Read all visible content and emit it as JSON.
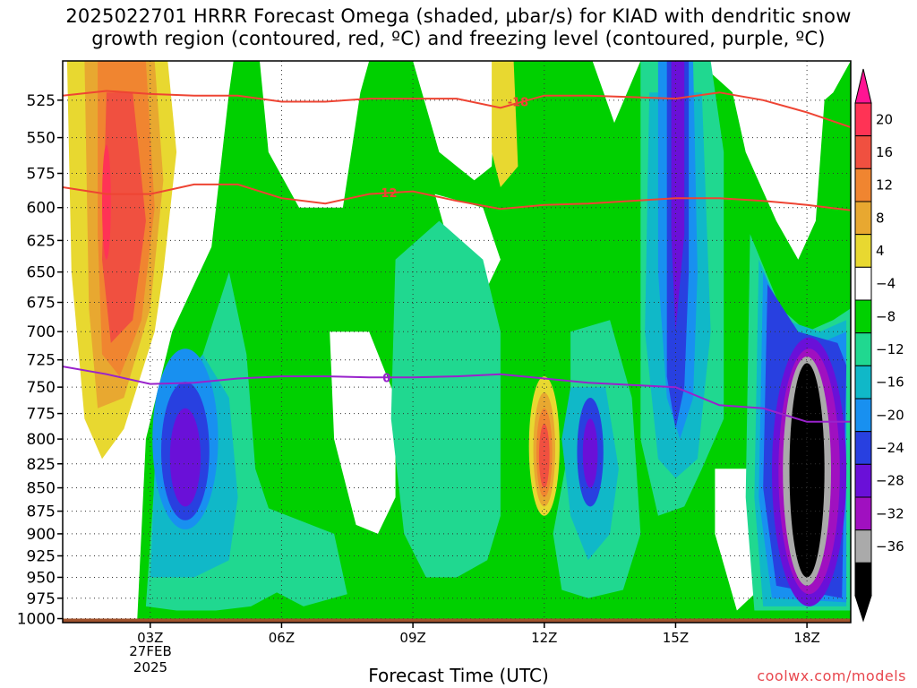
{
  "chart_data": {
    "type": "heatmap",
    "title_line1": "2025022701 HRRR Forecast Omega (shaded, μbar/s) for KIAD with dendritic snow",
    "title_line2": "growth region (contoured, red, ºC) and freezing level (contoured, purple, ºC)",
    "xlabel": "Forecast Time (UTC)",
    "x_ticks": [
      "03Z",
      "06Z",
      "09Z",
      "12Z",
      "15Z",
      "18Z"
    ],
    "x_tick_hours": [
      3,
      6,
      9,
      12,
      15,
      18
    ],
    "x_date_line1": "27FEB",
    "x_date_line2": "2025",
    "xlim_hours": [
      1,
      19
    ],
    "y_ticks": [
      525,
      550,
      575,
      600,
      625,
      650,
      675,
      700,
      725,
      750,
      775,
      800,
      825,
      850,
      875,
      900,
      925,
      950,
      975,
      1000
    ],
    "ylim_hPa": [
      500,
      1005
    ],
    "y_scale": "log",
    "colorbar": {
      "labels": [
        "20",
        "16",
        "12",
        "8",
        "4",
        "−4",
        "−8",
        "−12",
        "−16",
        "−20",
        "−24",
        "−28",
        "−32",
        "−36"
      ],
      "levels": [
        20,
        16,
        12,
        8,
        4,
        -4,
        -8,
        -12,
        -16,
        -20,
        -24,
        -28,
        -32,
        -36
      ],
      "colors": [
        "#ff3355",
        "#f05040",
        "#f08530",
        "#e8a830",
        "#e8d830",
        "#ffffff",
        "#00d000",
        "#20d890",
        "#10b8c8",
        "#1890f0",
        "#2840e0",
        "#6a10d8",
        "#a010c0",
        "#aaaaaa",
        "#000000"
      ],
      "top_arrow_color": "#ff1493",
      "bottom_arrow_color": "#000000"
    },
    "contours": [
      {
        "label": "-18",
        "color": "#ee4433",
        "x": [
          1,
          2,
          3,
          4,
          5,
          6,
          7,
          8,
          9,
          10,
          11,
          12,
          13,
          14,
          15,
          16,
          17,
          18,
          19
        ],
        "y": [
          522,
          519,
          521,
          522,
          522,
          526,
          526,
          524,
          524,
          524,
          530,
          522,
          522,
          523,
          524,
          520,
          525,
          533,
          543
        ]
      },
      {
        "label": "-12",
        "color": "#ee4433",
        "x": [
          1,
          2,
          3,
          4,
          5,
          6,
          7,
          8,
          9,
          10,
          11,
          12,
          13,
          14,
          15,
          16,
          17,
          18,
          19
        ],
        "y": [
          585,
          590,
          590,
          583,
          583,
          593,
          597,
          590,
          588,
          595,
          601,
          598,
          597,
          595,
          593,
          593,
          595,
          598,
          602
        ]
      },
      {
        "label": "0",
        "color": "#9922cc",
        "x": [
          1,
          2,
          3,
          4,
          5,
          6,
          7,
          8,
          9,
          10,
          11,
          12,
          13,
          14,
          15,
          16,
          17,
          18,
          19
        ],
        "y": [
          731,
          738,
          747,
          746,
          742,
          740,
          740,
          741,
          741,
          740,
          738,
          742,
          746,
          748,
          750,
          767,
          770,
          783,
          783
        ]
      }
    ],
    "omega_features": [
      {
        "x_hours": [
          1.8,
          2.7
        ],
        "p_hPa": [
          550,
          710
        ],
        "max": 16
      },
      {
        "x_hours": [
          3.3,
          4.3
        ],
        "p_hPa": [
          765,
          880
        ],
        "min": -28
      },
      {
        "x_hours": [
          11.7,
          12.3
        ],
        "p_hPa": [
          770,
          860
        ],
        "max": 16
      },
      {
        "x_hours": [
          12.9,
          13.2
        ],
        "p_hPa": [
          770,
          850
        ],
        "min": -24
      },
      {
        "x_hours": [
          14.6,
          15.2
        ],
        "p_hPa": [
          500,
          790
        ],
        "min": -28
      },
      {
        "x_hours": [
          17.3,
          18.8
        ],
        "p_hPa": [
          730,
          950
        ],
        "min": -36
      }
    ],
    "terrain_color": "#a0522d",
    "credit": "coolwx.com/models"
  }
}
